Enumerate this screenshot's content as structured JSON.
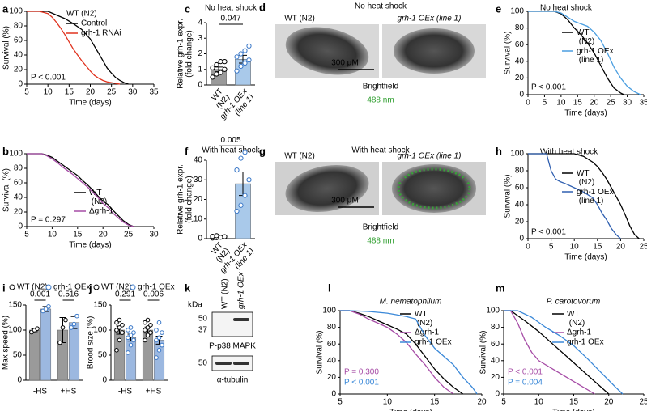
{
  "chart_data": [
    {
      "type": "line",
      "panel": "a",
      "xlabel": "Time (days)",
      "ylabel": "Survival (%)",
      "xlim": [
        5,
        35
      ],
      "xticks": [
        5,
        10,
        15,
        20,
        25,
        30,
        35
      ],
      "ylim": [
        0,
        100
      ],
      "yticks": [
        0,
        20,
        40,
        60,
        80,
        100
      ],
      "legend_title": "WT (N2)",
      "series": [
        {
          "name": "Control",
          "color": "#000000",
          "x": [
            5,
            10,
            12,
            14,
            16,
            18,
            20,
            21,
            22,
            23,
            24,
            25,
            26,
            27,
            28,
            29
          ],
          "values": [
            100,
            100,
            95,
            90,
            83,
            75,
            62,
            52,
            42,
            32,
            22,
            15,
            9,
            5,
            2,
            0
          ]
        },
        {
          "name": "grh-1 RNAi",
          "color": "#e0321e",
          "x": [
            5,
            8,
            10,
            11,
            12,
            13,
            14,
            15,
            16,
            17,
            18,
            19,
            20,
            21,
            22,
            23,
            24,
            26,
            27
          ],
          "values": [
            100,
            100,
            97,
            92,
            85,
            77,
            68,
            58,
            48,
            40,
            32,
            25,
            18,
            12,
            8,
            5,
            3,
            1,
            0
          ]
        }
      ],
      "annotations": [
        {
          "text": "P < 0.001",
          "color": "#000000"
        }
      ]
    },
    {
      "type": "line",
      "panel": "b",
      "xlabel": "Time (days)",
      "ylabel": "Survival (%)",
      "xlim": [
        5,
        30
      ],
      "xticks": [
        5,
        10,
        15,
        20,
        25,
        30
      ],
      "ylim": [
        0,
        100
      ],
      "yticks": [
        0,
        20,
        40,
        60,
        80,
        100
      ],
      "series": [
        {
          "name": "WT (N2)",
          "color": "#000000",
          "x": [
            5,
            8,
            9,
            10,
            11,
            12,
            13,
            14,
            15,
            16,
            17,
            18,
            19,
            20,
            21,
            22,
            23,
            24,
            25,
            26
          ],
          "values": [
            100,
            100,
            98,
            95,
            90,
            85,
            80,
            75,
            70,
            63,
            57,
            50,
            42,
            35,
            30,
            22,
            15,
            8,
            3,
            0
          ]
        },
        {
          "name": "Δgrh-1",
          "color": "#a64ca6",
          "x": [
            5,
            8,
            9,
            10,
            11,
            12,
            13,
            14,
            15,
            16,
            17,
            18,
            19,
            20,
            21,
            22,
            23,
            24,
            25,
            26
          ],
          "values": [
            100,
            100,
            97,
            93,
            88,
            82,
            77,
            72,
            66,
            60,
            54,
            47,
            40,
            32,
            26,
            18,
            12,
            6,
            2,
            0
          ]
        }
      ],
      "annotations": [
        {
          "text": "P = 0.297",
          "color": "#000000"
        }
      ]
    },
    {
      "type": "bar",
      "panel": "c",
      "title": "No heat shock",
      "ylabel": [
        "Relative grh-1 expr.",
        "(fold change)"
      ],
      "categories": [
        "WT (N2)",
        "grh-1 OEx (line 1)"
      ],
      "values": [
        1.0,
        1.65
      ],
      "errors": [
        0.15,
        0.25
      ],
      "points": [
        [
          0.5,
          0.7,
          0.8,
          1.0,
          1.1,
          1.3,
          1.5,
          1.5
        ],
        [
          0.9,
          1.2,
          1.4,
          1.6,
          1.8,
          2.0,
          2.2,
          2.5
        ]
      ],
      "colors": [
        "#9a9a9a",
        "#a9c9ea"
      ],
      "ylim": [
        0,
        4
      ],
      "yticks": [
        0,
        1,
        2,
        3,
        4
      ],
      "significance": [
        "0.047"
      ]
    },
    {
      "type": "line",
      "panel": "e",
      "title": "No heat shock",
      "xlabel": "Time (days)",
      "ylabel": "Survival (%)",
      "xlim": [
        0,
        35
      ],
      "xticks": [
        0,
        5,
        10,
        15,
        20,
        25,
        30,
        35
      ],
      "ylim": [
        0,
        100
      ],
      "yticks": [
        0,
        20,
        40,
        60,
        80,
        100
      ],
      "series": [
        {
          "name": "WT (N2)",
          "color": "#000000",
          "x": [
            0,
            8,
            10,
            12,
            14,
            16,
            18,
            20,
            22,
            24,
            26,
            28,
            29
          ],
          "values": [
            100,
            100,
            97,
            90,
            80,
            72,
            62,
            50,
            35,
            20,
            8,
            2,
            0
          ]
        },
        {
          "name": "grh-1 OEx (line 1)",
          "color": "#4a9ee0",
          "x": [
            0,
            8,
            10,
            12,
            14,
            16,
            18,
            20,
            22,
            24,
            26,
            28,
            30,
            32,
            34
          ],
          "values": [
            100,
            100,
            98,
            93,
            88,
            85,
            82,
            75,
            65,
            50,
            33,
            20,
            10,
            4,
            0
          ]
        }
      ],
      "annotations": [
        {
          "text": "P < 0.001",
          "color": "#000000"
        }
      ]
    },
    {
      "type": "bar",
      "panel": "f",
      "title": "With heat shock",
      "ylabel": [
        "Relative grh-1 expr.",
        "(fold change)"
      ],
      "categories": [
        "WT (N2)",
        "grh-1 OEx (line 1)"
      ],
      "values": [
        1,
        28
      ],
      "errors": [
        0.3,
        6
      ],
      "points": [
        [
          0.3,
          0.5,
          0.7,
          1,
          1.2,
          1.5
        ],
        [
          14,
          17,
          22,
          30,
          35,
          41,
          44
        ]
      ],
      "colors": [
        "#9a9a9a",
        "#a9c9ea"
      ],
      "ylim": [
        0,
        40
      ],
      "yticks": [
        0,
        10,
        20,
        30,
        40
      ],
      "significance": [
        "0.005"
      ]
    },
    {
      "type": "line",
      "panel": "h",
      "title": "With heat shock",
      "xlabel": "Time (days)",
      "ylabel": "Survival (%)",
      "xlim": [
        0,
        25
      ],
      "xticks": [
        0,
        5,
        10,
        15,
        20,
        25
      ],
      "ylim": [
        0,
        100
      ],
      "yticks": [
        0,
        20,
        40,
        60,
        80,
        100
      ],
      "series": [
        {
          "name": "WT (N2)",
          "color": "#000000",
          "x": [
            0,
            10,
            12,
            14,
            15,
            16,
            17,
            18,
            19,
            20,
            21,
            22,
            23,
            24
          ],
          "values": [
            100,
            100,
            97,
            90,
            85,
            78,
            70,
            60,
            50,
            40,
            28,
            15,
            5,
            0
          ]
        },
        {
          "name": "grh-1 OEx (line 1)",
          "color": "#2f5fb0",
          "x": [
            0,
            4,
            5,
            6,
            7,
            8,
            10,
            12,
            14,
            15,
            16,
            17,
            18,
            19,
            20
          ],
          "values": [
            100,
            100,
            80,
            70,
            67,
            65,
            60,
            55,
            48,
            40,
            30,
            22,
            12,
            5,
            0
          ]
        }
      ],
      "annotations": [
        {
          "text": "P < 0.001",
          "color": "#000000"
        }
      ]
    },
    {
      "type": "grouped_bar",
      "panel": "i",
      "ylabel": "Max speed (%)",
      "categories": [
        "-HS",
        "+HS"
      ],
      "ylim": [
        0,
        150
      ],
      "yticks": [
        0,
        50,
        100,
        150
      ],
      "significance": [
        "0.001",
        "0.516"
      ],
      "series": [
        {
          "name": "WT (N2)",
          "color": "#9a9a9a",
          "dot": "#000000",
          "values": [
            100,
            100
          ],
          "errors": [
            3,
            25
          ],
          "points": [
            [
              96,
              100,
              103
            ],
            [
              75,
              105,
              120
            ]
          ]
        },
        {
          "name": "grh-1 OEx",
          "color": "#9cb8e0",
          "dot": "#3a78c8",
          "values": [
            142,
            115
          ],
          "errors": [
            5,
            12
          ],
          "points": [
            [
              138,
              142,
              147
            ],
            [
              105,
              112,
              128
            ]
          ]
        }
      ]
    },
    {
      "type": "grouped_bar",
      "panel": "j",
      "ylabel": "Brood size (%)",
      "categories": [
        "-HS",
        "+HS"
      ],
      "ylim": [
        0,
        150
      ],
      "yticks": [
        0,
        50,
        100,
        150
      ],
      "significance": [
        "0.291",
        "0.006"
      ],
      "series": [
        {
          "name": "WT (N2)",
          "color": "#9a9a9a",
          "dot": "#000000",
          "values": [
            100,
            100
          ],
          "errors": [
            8,
            6
          ],
          "points": [
            [
              60,
              80,
              95,
              100,
              105,
              110,
              115,
              120
            ],
            [
              80,
              90,
              95,
              100,
              105,
              110,
              115,
              120
            ]
          ]
        },
        {
          "name": "grh-1 OEx",
          "color": "#9cb8e0",
          "dot": "#3a78c8",
          "values": [
            85,
            80
          ],
          "errors": [
            7,
            8
          ],
          "points": [
            [
              55,
              70,
              80,
              85,
              90,
              95,
              100,
              105
            ],
            [
              45,
              60,
              70,
              80,
              85,
              95,
              100,
              115
            ]
          ]
        }
      ]
    },
    {
      "type": "line",
      "panel": "l",
      "title": "M. nematophilum",
      "xlabel": "Time (days)",
      "ylabel": "Survival (%)",
      "xlim": [
        5,
        20
      ],
      "xticks": [
        5,
        10,
        15,
        20
      ],
      "ylim": [
        0,
        100
      ],
      "yticks": [
        0,
        20,
        40,
        60,
        80,
        100
      ],
      "series": [
        {
          "name": "WT (N2)",
          "color": "#000000",
          "x": [
            5,
            6,
            7,
            8,
            9,
            10,
            11,
            12,
            13,
            14,
            15,
            16,
            17,
            18
          ],
          "values": [
            100,
            100,
            97,
            93,
            88,
            83,
            78,
            72,
            60,
            45,
            30,
            18,
            8,
            0
          ]
        },
        {
          "name": "Δgrh-1",
          "color": "#a64ca6",
          "x": [
            5,
            6,
            7,
            8,
            9,
            10,
            11,
            12,
            13,
            14,
            15,
            16,
            17
          ],
          "values": [
            100,
            100,
            96,
            90,
            85,
            80,
            72,
            62,
            48,
            35,
            20,
            8,
            0
          ]
        },
        {
          "name": "grh-1 OEx",
          "color": "#3a88d8",
          "x": [
            5,
            6,
            8,
            10,
            11,
            12,
            13,
            14,
            15,
            16,
            17,
            18,
            19,
            19.5
          ],
          "values": [
            100,
            100,
            99,
            97,
            95,
            93,
            90,
            70,
            55,
            45,
            35,
            20,
            8,
            0
          ]
        }
      ],
      "annotations": [
        {
          "text": "P = 0.300",
          "color": "#a64ca6"
        },
        {
          "text": "P < 0.001",
          "color": "#3a88d8"
        }
      ]
    },
    {
      "type": "line",
      "panel": "m",
      "title": "P. carotovorum",
      "xlabel": "Time (days)",
      "ylabel": "Survival (%)",
      "xlim": [
        5,
        25
      ],
      "xticks": [
        5,
        10,
        15,
        20,
        25
      ],
      "ylim": [
        0,
        100
      ],
      "yticks": [
        0,
        20,
        40,
        60,
        80,
        100
      ],
      "series": [
        {
          "name": "WT (N2)",
          "color": "#000000",
          "x": [
            5,
            6,
            8,
            10,
            12,
            14,
            16,
            18,
            20
          ],
          "values": [
            100,
            100,
            88,
            75,
            60,
            45,
            30,
            15,
            0
          ]
        },
        {
          "name": "Δgrh-1",
          "color": "#a64ca6",
          "x": [
            5,
            6,
            7,
            8,
            9,
            10,
            12,
            14,
            16,
            18
          ],
          "values": [
            100,
            100,
            85,
            65,
            50,
            40,
            30,
            20,
            10,
            0
          ]
        },
        {
          "name": "grh-1 OEx",
          "color": "#3a88d8",
          "x": [
            5,
            7,
            9,
            11,
            13,
            15,
            17,
            19,
            21,
            22
          ],
          "values": [
            100,
            100,
            92,
            80,
            70,
            58,
            42,
            25,
            8,
            0
          ]
        }
      ],
      "annotations": [
        {
          "text": "P < 0.001",
          "color": "#a64ca6"
        },
        {
          "text": "P = 0.004",
          "color": "#3a88d8"
        }
      ]
    }
  ],
  "images": [
    {
      "panel": "d",
      "title": "No heat shock",
      "labels": [
        "WT (N2)",
        "grh-1 OEx (line 1)"
      ],
      "scale_bar": "300 μM",
      "channels": [
        "Brightfield",
        "488 nm"
      ]
    },
    {
      "panel": "g",
      "title": "With heat shock",
      "labels": [
        "WT (N2)",
        "grh-1 OEx (line 1)"
      ],
      "scale_bar": "300 μM",
      "channels": [
        "Brightfield",
        "488 nm"
      ]
    }
  ],
  "blot": {
    "panel": "k",
    "unit": "kDa",
    "columns": [
      "WT (N2)",
      "grh-1 OEx"
    ],
    "markers": [
      "50",
      "37",
      "50"
    ],
    "bands": [
      "P-p38 MAPK",
      "α-tubulin"
    ]
  }
}
